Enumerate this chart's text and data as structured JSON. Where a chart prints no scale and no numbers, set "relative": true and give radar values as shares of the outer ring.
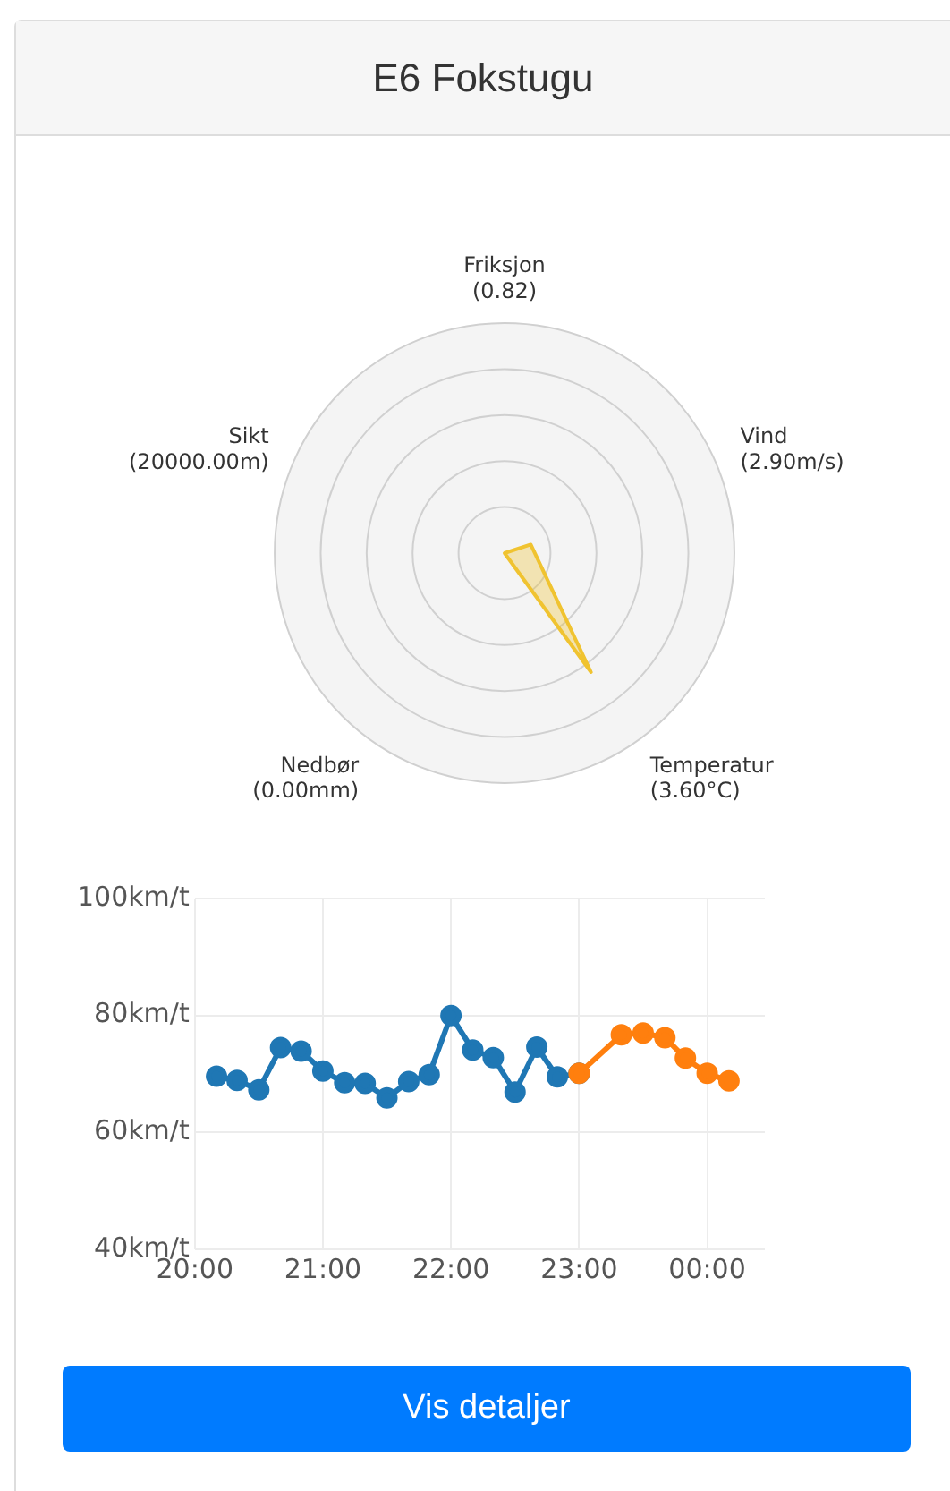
{
  "chart_data": [
    {
      "type": "radar",
      "title": "E6 Fokstugu",
      "relative": true,
      "grid": true,
      "categories": [
        "Friksjon",
        "Vind",
        "Temperatur",
        "Nedbør",
        "Sikt"
      ],
      "value_labels": [
        "(0.82)",
        "(2.90m/s)",
        "(3.60°C)",
        "(0.00mm)",
        "(20000.00m)"
      ],
      "series": [
        {
          "color": "#f0c330",
          "values": [
            0,
            0.12,
            0.64,
            0,
            0
          ]
        }
      ]
    },
    {
      "type": "line",
      "marker": "circle",
      "grid": true,
      "legend": false,
      "xlim": [
        20,
        24.45
      ],
      "xticks": [
        {
          "value": 20,
          "label": "20:00"
        },
        {
          "value": 21,
          "label": "21:00"
        },
        {
          "value": 22,
          "label": "22:00"
        },
        {
          "value": 23,
          "label": "23:00"
        },
        {
          "value": 24,
          "label": "00:00"
        }
      ],
      "ylim": [
        40,
        100
      ],
      "yticks": [
        {
          "value": 40,
          "label": "40km/t"
        },
        {
          "value": 60,
          "label": "60km/t"
        },
        {
          "value": 80,
          "label": "80km/t"
        },
        {
          "value": 100,
          "label": "100km/t"
        }
      ],
      "annotations": [
        "Vis detaljer"
      ],
      "series": [
        {
          "color": "#1f77b4",
          "x": [
            20.17,
            20.33,
            20.5,
            20.67,
            20.83,
            21,
            21.17,
            21.33,
            21.5,
            21.67,
            21.83,
            22,
            22.17,
            22.33,
            22.5,
            22.67,
            22.83,
            23
          ],
          "values": [
            69.6,
            68.9,
            67.3,
            74.5,
            73.9,
            70.5,
            68.5,
            68.4,
            65.9,
            68.7,
            69.9,
            80,
            74.1,
            72.8,
            66.9,
            74.6,
            69.5,
            70.1
          ]
        },
        {
          "color": "#ff7f0e",
          "x": [
            23,
            23.33,
            23.5,
            23.67,
            23.83,
            24,
            24.17
          ],
          "values": [
            70.1,
            76.7,
            77,
            76.2,
            72.7,
            70.1,
            68.8
          ]
        }
      ]
    }
  ]
}
